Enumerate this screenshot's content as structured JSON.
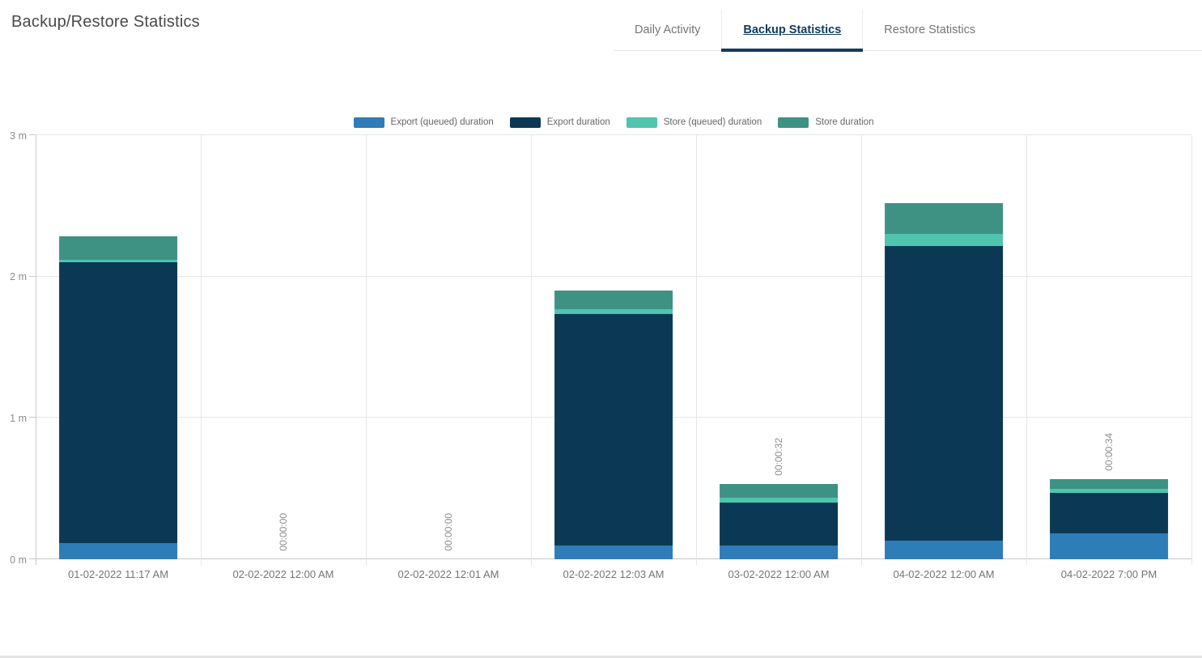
{
  "page": {
    "title": "Backup/Restore Statistics"
  },
  "tabs": [
    {
      "label": "Daily Activity",
      "active": false
    },
    {
      "label": "Backup Statistics",
      "active": true
    },
    {
      "label": "Restore Statistics",
      "active": false
    }
  ],
  "colors": {
    "accent": "#123c60",
    "grid": "#e7e7e7",
    "axis": "#c9c9c9",
    "tick_label": "#8c8c8c",
    "category_label": "#757575",
    "legend_label": "#666666",
    "tab_inactive": "#757575",
    "title": "#4a4a4a"
  },
  "chart_data": {
    "type": "bar",
    "stacked": true,
    "title": "",
    "xlabel": "",
    "ylabel": "",
    "unit": "seconds",
    "y_max_seconds": 180,
    "y_ticks": [
      "0 m",
      "1 m",
      "2 m",
      "3 m"
    ],
    "grid": true,
    "legend_position": "top",
    "categories": [
      "01-02-2022 11:17 AM",
      "02-02-2022 12:00 AM",
      "02-02-2022 12:01 AM",
      "02-02-2022 12:03 AM",
      "03-02-2022 12:00 AM",
      "04-02-2022 12:00 AM",
      "04-02-2022 7:00 PM"
    ],
    "series": [
      {
        "name": "Export (queued) duration",
        "color": "#2e7cb8",
        "values": [
          7,
          0,
          0,
          6,
          6,
          8,
          11
        ]
      },
      {
        "name": "Export duration",
        "color": "#0b3955",
        "values": [
          119,
          0,
          0,
          98,
          18,
          125,
          17
        ]
      },
      {
        "name": "Store (queued) duration",
        "color": "#4fc4ae",
        "values": [
          1,
          0,
          0,
          2,
          2,
          5,
          2
        ]
      },
      {
        "name": "Store duration",
        "color": "#3e9283",
        "values": [
          10,
          0,
          0,
          8,
          6,
          13,
          4
        ]
      }
    ],
    "bar_labels": [
      "",
      "00:00:00",
      "00:00:00",
      "",
      "00:00:32",
      "",
      "00:00:34"
    ],
    "totals_seconds": [
      137,
      0,
      0,
      114,
      32,
      151,
      34
    ]
  }
}
